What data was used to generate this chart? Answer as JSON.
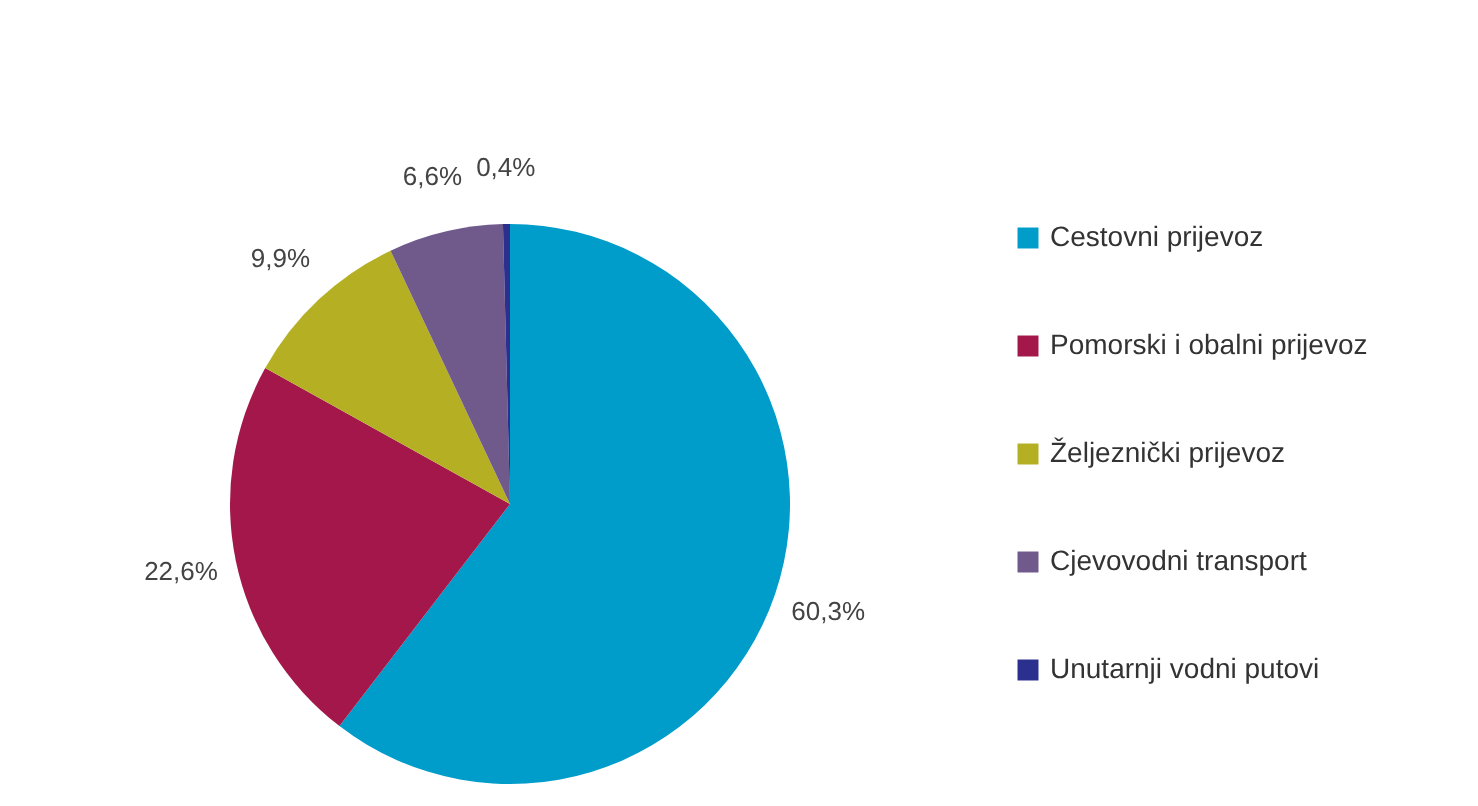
{
  "chart_data": {
    "type": "pie",
    "categories": [
      "Cestovni prijevoz",
      "Pomorski i obalni prijevoz",
      "Željeznički prijevoz",
      "Cjevovodni transport",
      "Unutarnji vodni putovi"
    ],
    "values": [
      60.3,
      22.6,
      9.9,
      6.6,
      0.4
    ],
    "colors": [
      "#009cca",
      "#a3174a",
      "#b5b023",
      "#705a8b",
      "#2b2f8e"
    ],
    "value_labels": [
      "60,3%",
      "22,6%",
      "9,9%",
      "6,6%",
      "0,4%"
    ],
    "legend": "right"
  }
}
